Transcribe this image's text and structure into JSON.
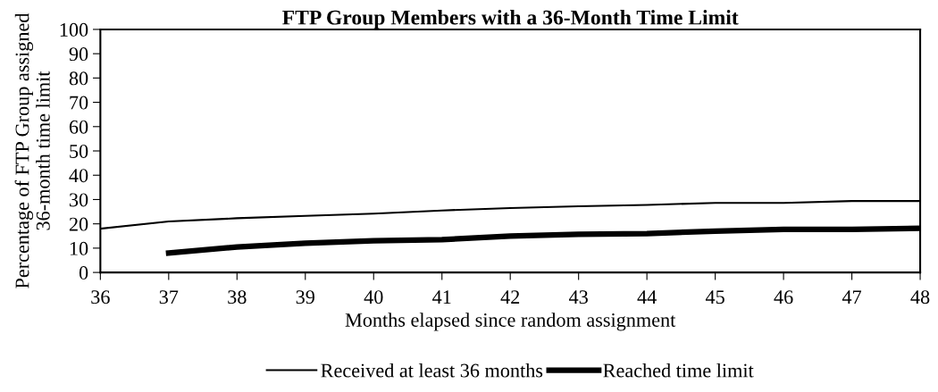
{
  "chart_data": {
    "type": "line",
    "title": "FTP Group Members with a 36-Month Time Limit",
    "xlabel": "Months elapsed since random assignment",
    "ylabel": "Percentage of FTP Group assigned\n36-month time limit",
    "xlim": [
      36,
      48
    ],
    "xticks": [
      36,
      37,
      38,
      39,
      40,
      41,
      42,
      43,
      44,
      45,
      46,
      47,
      48
    ],
    "ylim": [
      0,
      100
    ],
    "yticks": [
      0,
      10,
      20,
      30,
      40,
      50,
      60,
      70,
      80,
      90,
      100
    ],
    "grid": false,
    "legend": "bottom",
    "marker": "none",
    "line_style": "solid",
    "series": [
      {
        "name": "Received at least 36 months",
        "color": "#000000",
        "x": [
          36,
          37,
          38,
          39,
          40,
          41,
          42,
          43,
          44,
          45,
          46,
          47,
          48
        ],
        "values": [
          18,
          21,
          22.3,
          23.3,
          24.2,
          25.5,
          26.5,
          27.2,
          27.8,
          28.6,
          28.6,
          29.4,
          29.4
        ]
      },
      {
        "name": "Reached time limit",
        "color": "#000000",
        "x": [
          37,
          38,
          39,
          40,
          41,
          42,
          43,
          44,
          45,
          46,
          47,
          48
        ],
        "values": [
          8,
          10.5,
          12,
          13,
          13.5,
          15,
          15.7,
          16,
          17,
          17.7,
          17.7,
          18.2
        ]
      }
    ]
  }
}
